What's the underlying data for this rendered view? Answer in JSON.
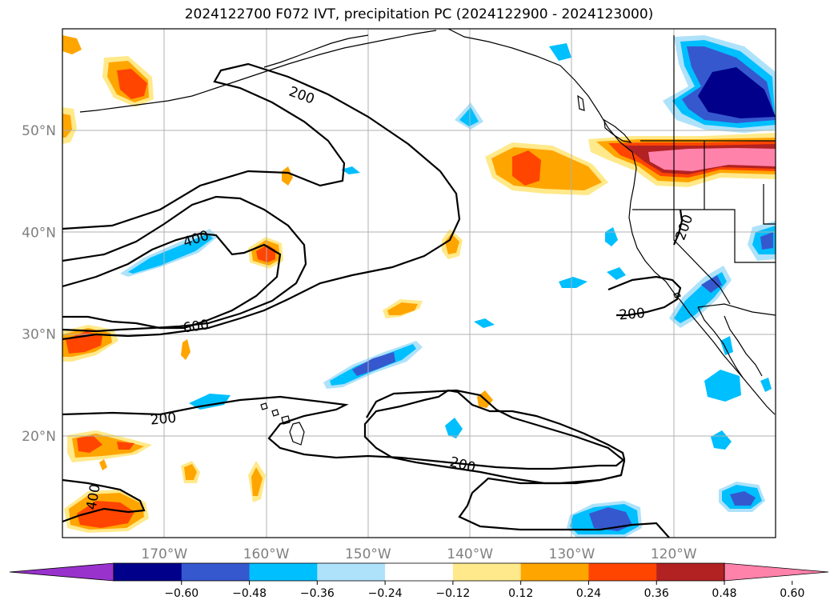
{
  "title": "2024122700 F072 IVT, precipitation PC (2024122900 - 2024123000)",
  "map": {
    "lon_range": [
      -180,
      -110
    ],
    "lat_range": [
      10,
      60
    ],
    "lon_ticks": [
      {
        "lon": -170,
        "label": "170°W"
      },
      {
        "lon": -160,
        "label": "160°W"
      },
      {
        "lon": -150,
        "label": "150°W"
      },
      {
        "lon": -140,
        "label": "140°W"
      },
      {
        "lon": -130,
        "label": "130°W"
      },
      {
        "lon": -120,
        "label": "120°W"
      }
    ],
    "lat_ticks": [
      {
        "lat": 50,
        "label": "50°N"
      },
      {
        "lat": 40,
        "label": "40°N"
      },
      {
        "lat": 30,
        "label": "30°N"
      },
      {
        "lat": 20,
        "label": "20°N"
      }
    ],
    "grid": true,
    "ivt_contour_labels": [
      {
        "text": "200",
        "lon": -156.5,
        "lat": 53.5,
        "rot": 20
      },
      {
        "text": "400",
        "lon": -166.9,
        "lat": 39.4,
        "rot": -18
      },
      {
        "text": "600",
        "lon": -166.9,
        "lat": 30.8,
        "rot": -8
      },
      {
        "text": "200",
        "lon": -170.1,
        "lat": 21.7,
        "rot": -5
      },
      {
        "text": "200",
        "lon": -140.7,
        "lat": 17.2,
        "rot": 15
      },
      {
        "text": "200",
        "lon": -124.1,
        "lat": 32.0,
        "rot": -5
      },
      {
        "text": "200",
        "lon": -119.0,
        "lat": 40.5,
        "rot": -70
      },
      {
        "text": "400",
        "lon": -177.0,
        "lat": 14.0,
        "rot": -80
      }
    ],
    "precip_colors": {
      "n060": "#9932cc",
      "n048": "#00008b",
      "n036": "#3558cf",
      "n024": "#00bfff",
      "n012": "#aee2fa",
      "p012": "#ffe98a",
      "p024": "#ffa500",
      "p036": "#ff4500",
      "p048": "#b22222",
      "p060": "#ff82ab"
    }
  },
  "colorbar": {
    "bins": [
      {
        "color": "#9932cc"
      },
      {
        "color": "#00008b"
      },
      {
        "color": "#3558cf"
      },
      {
        "color": "#00bfff"
      },
      {
        "color": "#aee2fa"
      },
      {
        "color": "#ffffff"
      },
      {
        "color": "#ffe98a"
      },
      {
        "color": "#ffa500"
      },
      {
        "color": "#ff4500"
      },
      {
        "color": "#b22222"
      },
      {
        "color": "#ff82ab"
      }
    ],
    "ticks": [
      "−0.60",
      "−0.48",
      "−0.36",
      "−0.24",
      "−0.12",
      "0.12",
      "0.24",
      "0.36",
      "0.48",
      "0.60"
    ]
  }
}
